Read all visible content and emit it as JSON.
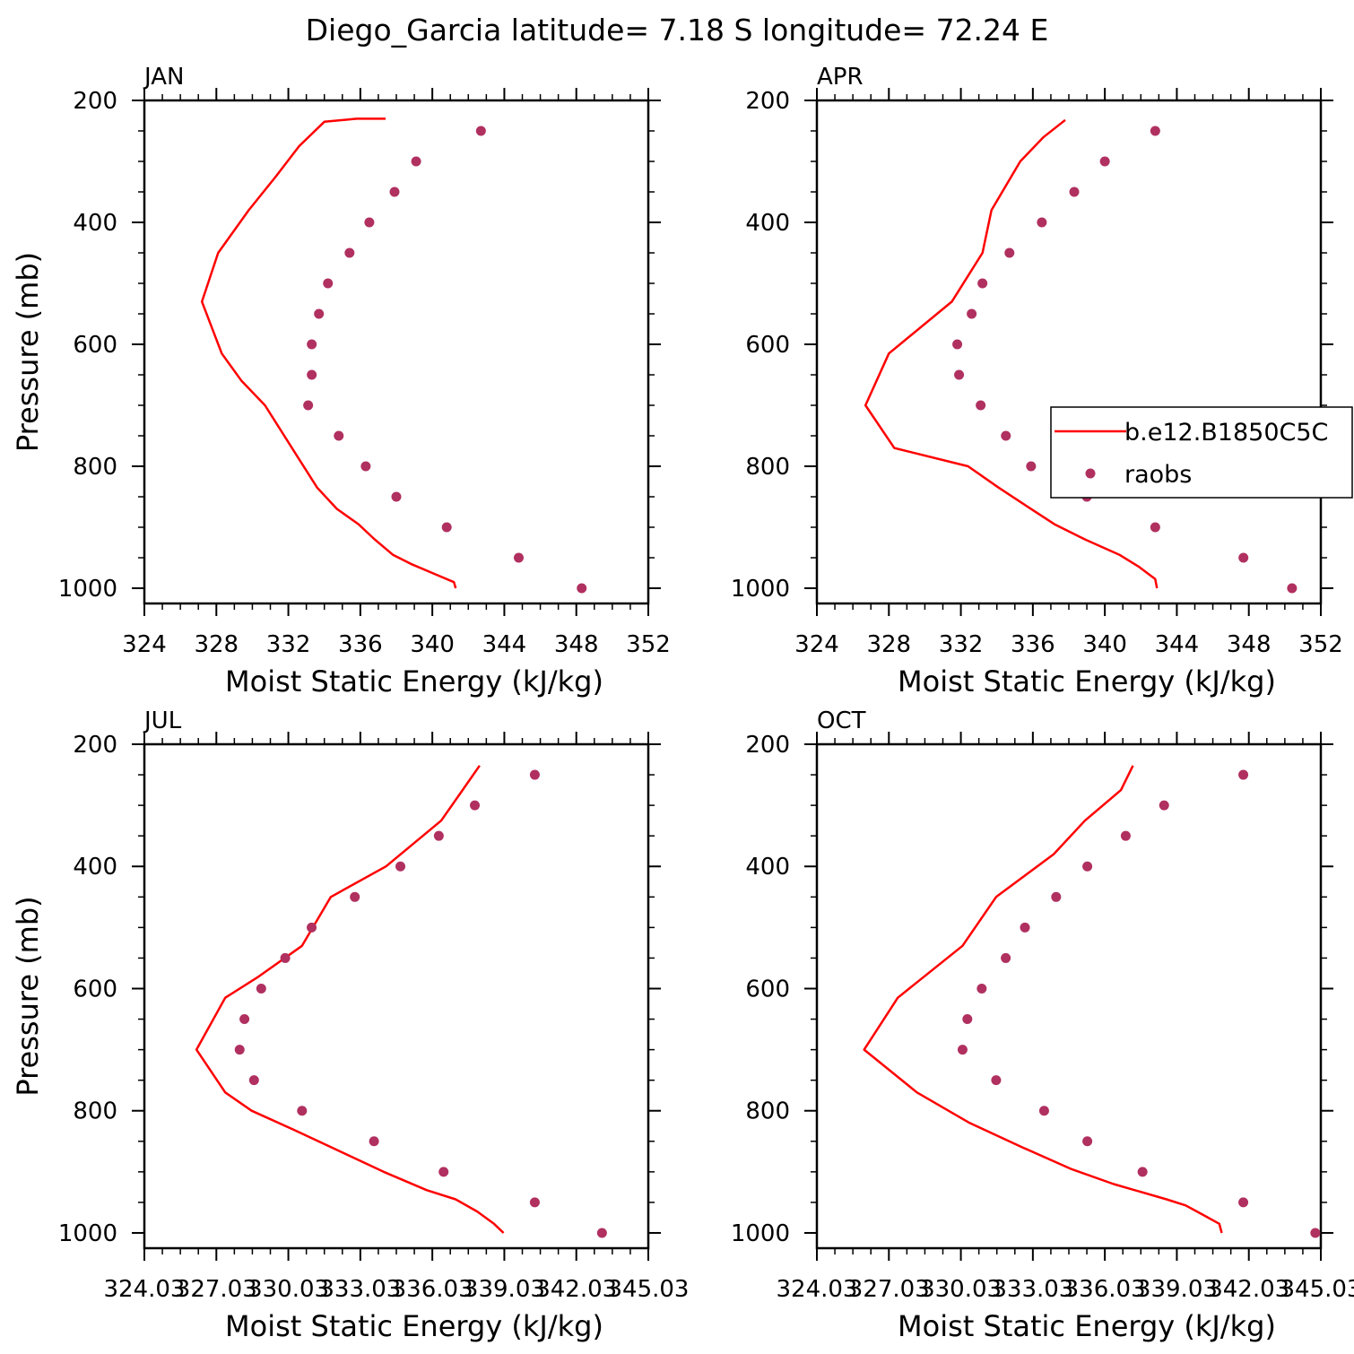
{
  "title": "Diego_Garcia  latitude= 7.18 S longitude= 72.24 E",
  "colors": {
    "model": "#ff0000",
    "obs": "#b03060",
    "axis": "#000000"
  },
  "legend": {
    "entries": [
      {
        "label": "b.e12.B1850C5C",
        "style": "line",
        "color": "#ff0000"
      },
      {
        "label": "raobs",
        "style": "marker",
        "color": "#b03060"
      }
    ],
    "panel": "APR",
    "placement": "right"
  },
  "chart_data": [
    {
      "type": "line",
      "panel_label": "JAN",
      "xlabel": "Moist Static Energy (kJ/kg)",
      "ylabel": "Pressure (mb)",
      "xlim": [
        324,
        352
      ],
      "ylim": [
        200,
        1025
      ],
      "y_inverted": true,
      "x_ticks": [
        "324",
        "328",
        "332",
        "336",
        "340",
        "344",
        "348",
        "352"
      ],
      "y_ticks": [
        "200",
        "400",
        "600",
        "800",
        "1000"
      ],
      "series": [
        {
          "name": "b.e12.B1850C5C",
          "style": "line",
          "x": [
            341.3,
            341.2,
            340.0,
            338.8,
            337.8,
            336.8,
            335.9,
            334.7,
            333.6,
            332.2,
            330.7,
            329.4,
            328.3,
            327.2,
            328.1,
            329.8,
            331.3,
            332.6,
            334.0,
            335.8,
            337.4
          ],
          "y": [
            1000,
            990,
            975,
            960,
            945,
            920,
            895,
            870,
            835,
            770,
            700,
            660,
            615,
            530,
            450,
            380,
            325,
            275,
            235,
            230,
            230
          ]
        },
        {
          "name": "raobs",
          "style": "marker",
          "x": [
            348.3,
            344.8,
            340.8,
            338.0,
            336.3,
            334.8,
            333.1,
            333.3,
            333.3,
            333.7,
            334.2,
            335.4,
            336.5,
            337.9,
            339.1,
            342.7
          ],
          "y": [
            1000,
            950,
            900,
            850,
            800,
            750,
            700,
            650,
            600,
            550,
            500,
            450,
            400,
            350,
            300,
            250
          ]
        }
      ]
    },
    {
      "type": "line",
      "panel_label": "APR",
      "xlabel": "Moist Static Energy (kJ/kg)",
      "ylabel": "",
      "xlim": [
        324,
        352
      ],
      "ylim": [
        200,
        1025
      ],
      "y_inverted": true,
      "x_ticks": [
        "324",
        "328",
        "332",
        "336",
        "340",
        "344",
        "348",
        "352"
      ],
      "y_ticks": [
        "200",
        "400",
        "600",
        "800",
        "1000"
      ],
      "series": [
        {
          "name": "b.e12.B1850C5C",
          "style": "line",
          "x": [
            342.9,
            342.8,
            341.9,
            340.8,
            338.9,
            337.2,
            335.9,
            334.1,
            332.4,
            328.3,
            326.7,
            328.0,
            331.5,
            333.2,
            333.7,
            335.3,
            336.6,
            337.8
          ],
          "y": [
            1000,
            985,
            965,
            945,
            920,
            895,
            870,
            835,
            800,
            770,
            700,
            615,
            530,
            450,
            380,
            300,
            260,
            232
          ]
        },
        {
          "name": "raobs",
          "style": "marker",
          "x": [
            350.4,
            347.7,
            342.8,
            339.0,
            335.9,
            334.5,
            333.1,
            331.9,
            331.8,
            332.6,
            333.2,
            334.7,
            336.5,
            338.3,
            340.0,
            342.8
          ],
          "y": [
            1000,
            950,
            900,
            850,
            800,
            750,
            700,
            650,
            600,
            550,
            500,
            450,
            400,
            350,
            300,
            250
          ]
        }
      ]
    },
    {
      "type": "line",
      "panel_label": "JUL",
      "xlabel": "Moist Static Energy (kJ/kg)",
      "ylabel": "Pressure (mb)",
      "xlim": [
        324.03,
        345.03
      ],
      "ylim": [
        200,
        1025
      ],
      "y_inverted": true,
      "x_ticks": [
        "324.03",
        "327.03",
        "330.03",
        "333.03",
        "336.03",
        "339.03",
        "342.03",
        "345.03"
      ],
      "y_ticks": [
        "200",
        "400",
        "600",
        "800",
        "1000"
      ],
      "series": [
        {
          "name": "b.e12.B1850C5C",
          "style": "line",
          "x": [
            339.0,
            338.6,
            337.9,
            337.0,
            335.8,
            334.0,
            332.1,
            330.2,
            328.5,
            327.4,
            326.2,
            327.4,
            328.8,
            330.6,
            331.8,
            334.1,
            336.4,
            337.2,
            338.0
          ],
          "y": [
            1000,
            985,
            965,
            945,
            930,
            900,
            865,
            830,
            800,
            770,
            700,
            615,
            580,
            530,
            450,
            400,
            325,
            280,
            235
          ]
        },
        {
          "name": "raobs",
          "style": "marker",
          "x": [
            343.1,
            340.3,
            336.5,
            333.6,
            330.6,
            328.6,
            328.0,
            328.2,
            328.9,
            329.9,
            331.0,
            332.8,
            334.7,
            336.3,
            337.8,
            340.3
          ],
          "y": [
            1000,
            950,
            900,
            850,
            800,
            750,
            700,
            650,
            600,
            550,
            500,
            450,
            400,
            350,
            300,
            250
          ]
        }
      ]
    },
    {
      "type": "line",
      "panel_label": "OCT",
      "xlabel": "Moist Static Energy (kJ/kg)",
      "ylabel": "",
      "xlim": [
        324.03,
        345.03
      ],
      "ylim": [
        200,
        1025
      ],
      "y_inverted": true,
      "x_ticks": [
        "324.03",
        "327.03",
        "330.03",
        "333.03",
        "336.03",
        "339.03",
        "342.03",
        "345.03"
      ],
      "y_ticks": [
        "200",
        "400",
        "600",
        "800",
        "1000"
      ],
      "series": [
        {
          "name": "b.e12.B1850C5C",
          "style": "line",
          "x": [
            340.9,
            340.8,
            340.1,
            339.4,
            338.6,
            336.4,
            334.6,
            332.6,
            330.4,
            328.2,
            326.0,
            327.4,
            330.1,
            331.5,
            333.9,
            335.2,
            336.7,
            337.2
          ],
          "y": [
            1000,
            985,
            970,
            955,
            945,
            920,
            895,
            860,
            820,
            770,
            700,
            615,
            530,
            450,
            380,
            325,
            275,
            235
          ]
        },
        {
          "name": "raobs",
          "style": "marker",
          "x": [
            344.8,
            341.8,
            337.6,
            335.3,
            333.5,
            331.5,
            330.1,
            330.3,
            330.9,
            331.9,
            332.7,
            334.0,
            335.3,
            336.9,
            338.5,
            341.8
          ],
          "y": [
            1000,
            950,
            900,
            850,
            800,
            750,
            700,
            650,
            600,
            550,
            500,
            450,
            400,
            350,
            300,
            250
          ]
        }
      ]
    }
  ]
}
